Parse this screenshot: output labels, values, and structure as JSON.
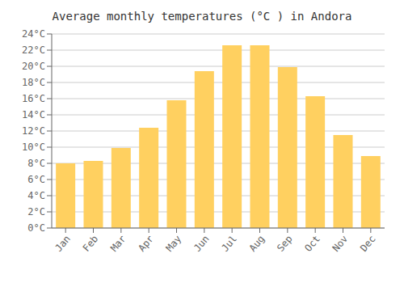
{
  "chart_data": {
    "type": "bar",
    "title": "Average monthly temperatures (°C ) in Andora",
    "categories": [
      "Jan",
      "Feb",
      "Mar",
      "Apr",
      "May",
      "Jun",
      "Jul",
      "Aug",
      "Sep",
      "Oct",
      "Nov",
      "Dec"
    ],
    "values": [
      8.0,
      8.3,
      9.9,
      12.4,
      15.8,
      19.4,
      22.6,
      22.6,
      19.9,
      16.3,
      11.5,
      8.9
    ],
    "color": "#FFD060",
    "ylim": [
      0,
      24
    ],
    "yticks": [
      {
        "value": 0,
        "label": "0°C"
      },
      {
        "value": 2,
        "label": "2°C"
      },
      {
        "value": 4,
        "label": "4°C"
      },
      {
        "value": 6,
        "label": "6°C"
      },
      {
        "value": 8,
        "label": "8°C"
      },
      {
        "value": 10,
        "label": "10°C"
      },
      {
        "value": 12,
        "label": "12°C"
      },
      {
        "value": 14,
        "label": "14°C"
      },
      {
        "value": 16,
        "label": "16°C"
      },
      {
        "value": 18,
        "label": "18°C"
      },
      {
        "value": 20,
        "label": "20°C"
      },
      {
        "value": 22,
        "label": "22°C"
      },
      {
        "value": 24,
        "label": "24°C"
      }
    ],
    "grid": true
  }
}
